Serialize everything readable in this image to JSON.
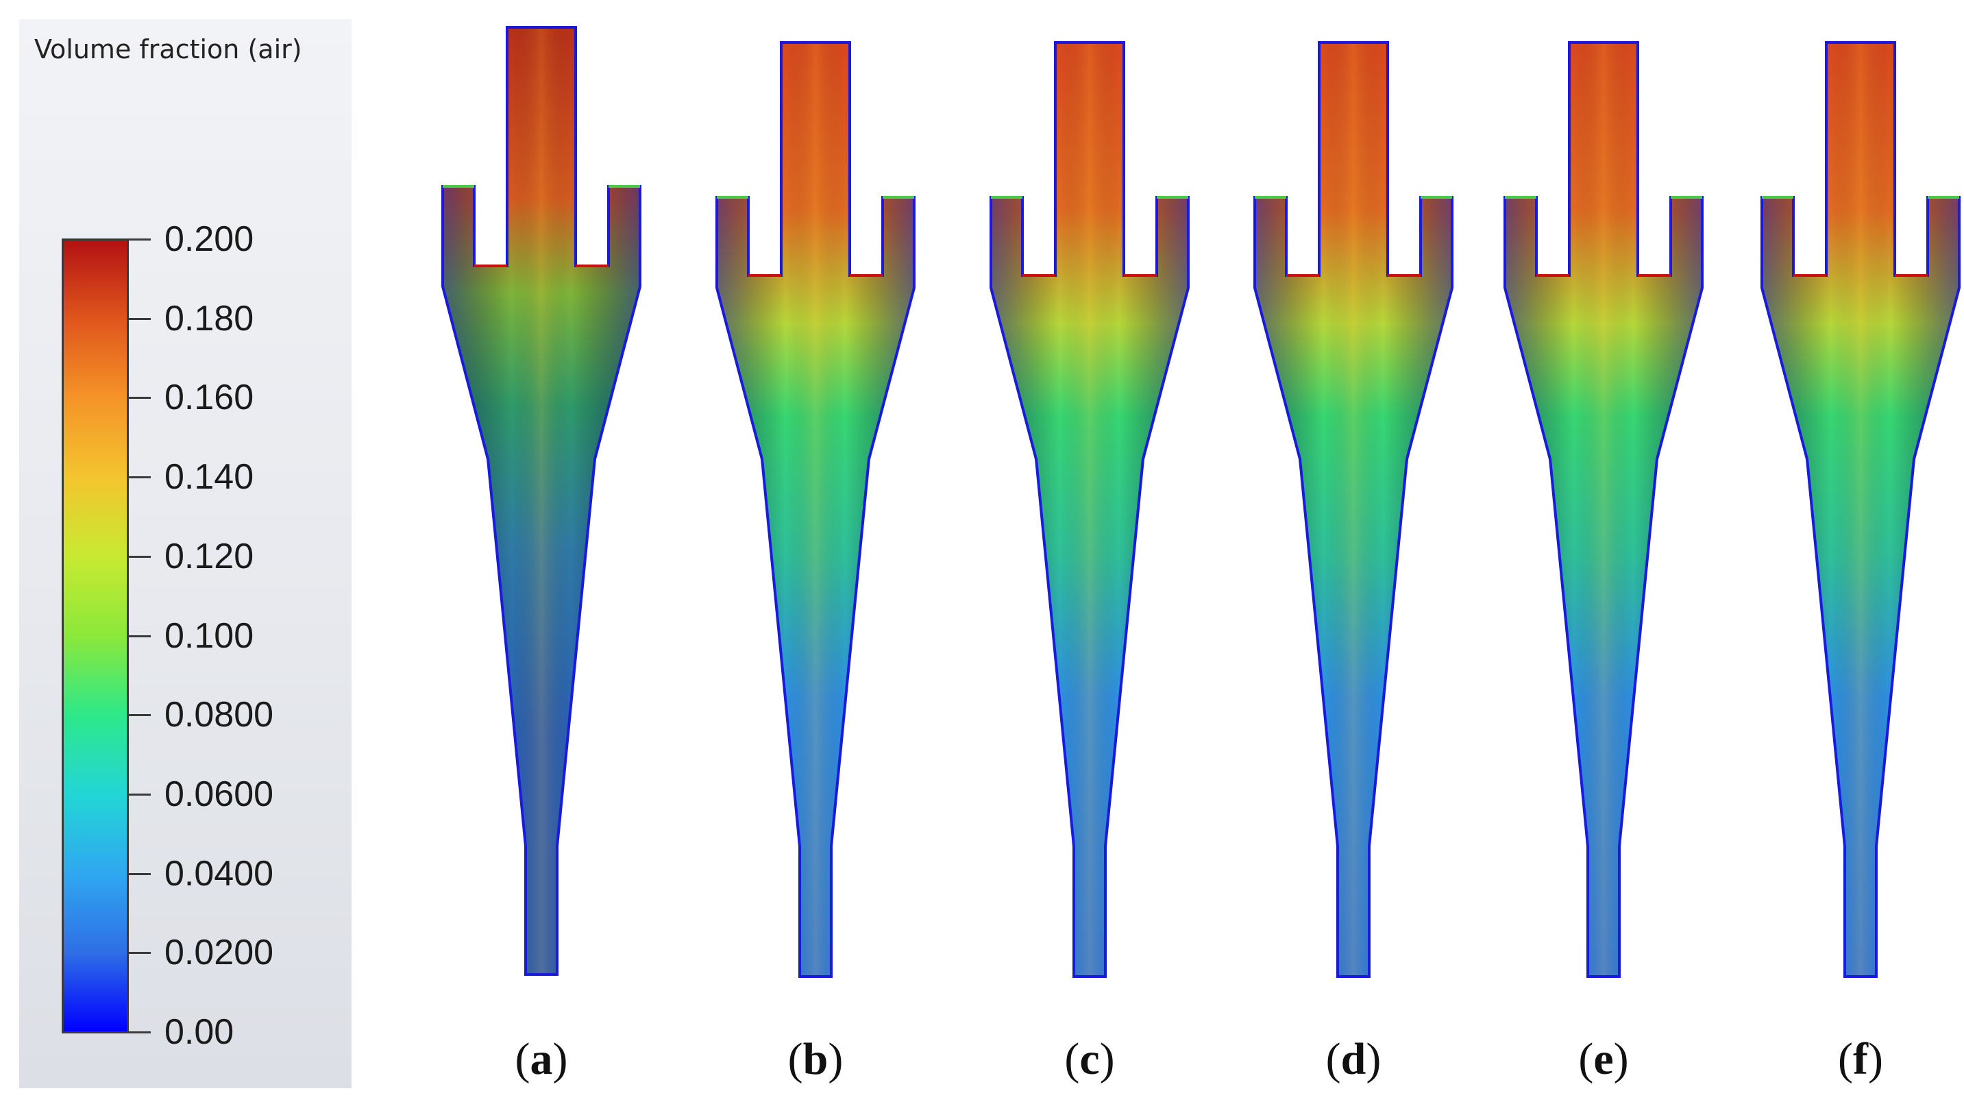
{
  "legend": {
    "title": "Volume fraction (air)",
    "min": 0,
    "max": 0.2,
    "ticks": [
      "0.200",
      "0.180",
      "0.160",
      "0.140",
      "0.120",
      "0.100",
      "0.0800",
      "0.0600",
      "0.0400",
      "0.0200",
      "0.00"
    ],
    "colormap": [
      "#0000ff",
      "#2f6fe6",
      "#2fa8f0",
      "#22d6d6",
      "#2ee88a",
      "#8be83a",
      "#c8ea32",
      "#f3c52e",
      "#f59428",
      "#e0561c",
      "#b31212"
    ]
  },
  "panels": [
    {
      "id": "a",
      "label": "a",
      "bright": false
    },
    {
      "id": "b",
      "label": "b",
      "bright": true
    },
    {
      "id": "c",
      "label": "c",
      "bright": true
    },
    {
      "id": "d",
      "label": "d",
      "bright": true
    },
    {
      "id": "e",
      "label": "e",
      "bright": true
    },
    {
      "id": "f",
      "label": "f",
      "bright": true
    }
  ],
  "colors": {
    "wall": "#1a1adf",
    "vortex_finder_rim": "#cc1010",
    "core_top": "#d9481e",
    "core_mid": "#c7e23a",
    "body_mid": "#38d672",
    "body_low": "#2f7be0",
    "body_low_dark": "#2b5fb4"
  }
}
